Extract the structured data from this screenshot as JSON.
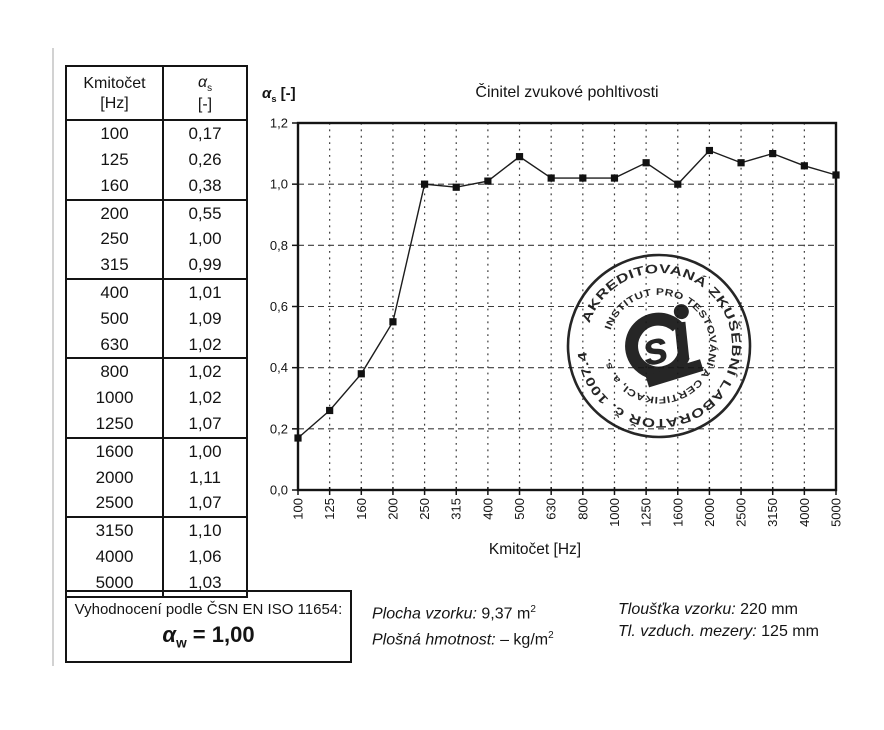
{
  "page": {
    "background": "#ffffff",
    "ink": "#141414"
  },
  "table": {
    "header": {
      "col1_line1": "Kmitočet",
      "col1_line2": "[Hz]",
      "col2_alpha": "α",
      "col2_sub": "s",
      "col2_line2": "[-]"
    },
    "rows": [
      {
        "freq": "100",
        "alpha": "0,17"
      },
      {
        "freq": "125",
        "alpha": "0,26"
      },
      {
        "freq": "160",
        "alpha": "0,38"
      },
      {
        "freq": "200",
        "alpha": "0,55"
      },
      {
        "freq": "250",
        "alpha": "1,00"
      },
      {
        "freq": "315",
        "alpha": "0,99"
      },
      {
        "freq": "400",
        "alpha": "1,01"
      },
      {
        "freq": "500",
        "alpha": "1,09"
      },
      {
        "freq": "630",
        "alpha": "1,02"
      },
      {
        "freq": "800",
        "alpha": "1,02"
      },
      {
        "freq": "1000",
        "alpha": "1,02"
      },
      {
        "freq": "1250",
        "alpha": "1,07"
      },
      {
        "freq": "1600",
        "alpha": "1,00"
      },
      {
        "freq": "2000",
        "alpha": "1,11"
      },
      {
        "freq": "2500",
        "alpha": "1,07"
      },
      {
        "freq": "3150",
        "alpha": "1,10"
      },
      {
        "freq": "4000",
        "alpha": "1,06"
      },
      {
        "freq": "5000",
        "alpha": "1,03"
      }
    ]
  },
  "evaluation": {
    "standard_line": "Vyhodnocení podle ČSN EN ISO 11654:",
    "alpha_symbol": "α",
    "alpha_sub": "w",
    "result": "= 1,00"
  },
  "chart_data": {
    "type": "line",
    "title": "Činitel zvukové pohltivosti",
    "ylabel_alpha": "α",
    "ylabel_sub": "s",
    "ylabel_unit": "[-]",
    "xlabel": "Kmitočet [Hz]",
    "categories": [
      "100",
      "125",
      "160",
      "200",
      "250",
      "315",
      "400",
      "500",
      "630",
      "800",
      "1000",
      "1250",
      "1600",
      "2000",
      "2500",
      "3150",
      "4000",
      "5000"
    ],
    "values": [
      0.17,
      0.26,
      0.38,
      0.55,
      1.0,
      0.99,
      1.01,
      1.09,
      1.02,
      1.02,
      1.02,
      1.07,
      1.0,
      1.11,
      1.07,
      1.1,
      1.06,
      1.03
    ],
    "ylim": [
      0,
      1.2
    ],
    "ytick_step": 0.2,
    "ytick_labels": [
      "0,0",
      "0,2",
      "0,4",
      "0,6",
      "0,8",
      "1,0",
      "1,2"
    ],
    "grid": true,
    "legend": "none",
    "marker": "square",
    "line_color": "#1c1c1c"
  },
  "stamp": {
    "outer_text": "AKREDITOVANÁ ZKUŠEBNÍ LABORATOŘ č. 1007.4",
    "inner_text": "INSTITUT PRO TESTOVÁNÍ A CERTIFIKACI, a. s.",
    "logo": "csi"
  },
  "info": {
    "plocha_label": "Plocha vzorku:",
    "plocha_value": "9,37 m",
    "plocha_sup": "2",
    "plosna_label": "Plošná hmotnost:",
    "plosna_value": "– kg/m",
    "plosna_sup": "2",
    "tloustka_label": "Tloušťka vzorku:",
    "tloustka_value": "220 mm",
    "mezera_label": "Tl. vzduch. mezery:",
    "mezera_value": "125 mm"
  }
}
